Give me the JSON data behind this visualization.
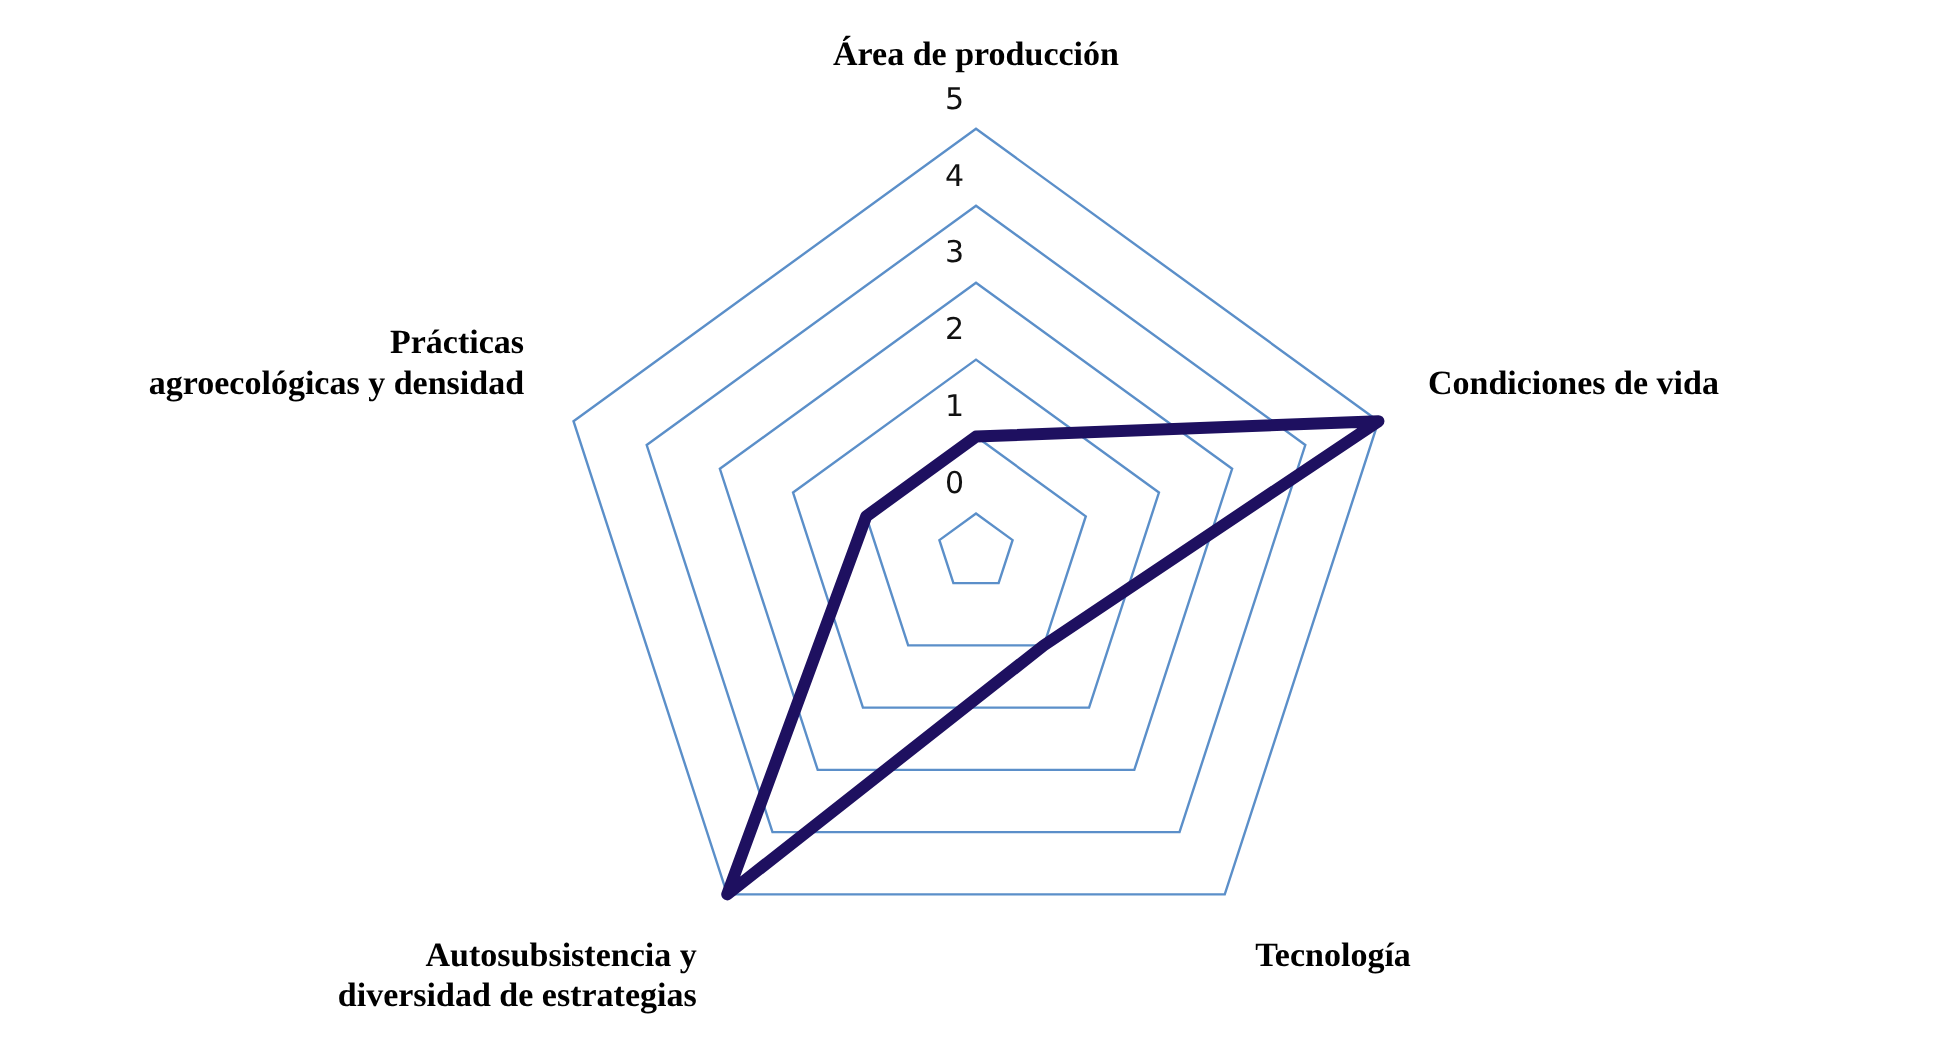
{
  "chart_data": {
    "type": "radar",
    "categories": [
      "Área de producción",
      "Condiciones de vida",
      "Tecnología",
      "Autosubsistencia y diversidad de estrategias",
      "Prácticas agroecológicas y densidad"
    ],
    "series": [
      {
        "color": "#1e1060",
        "values": [
          1,
          5,
          1,
          5,
          1
        ]
      }
    ],
    "ylim": [
      -0.5,
      5
    ],
    "yticks": [
      0,
      1,
      2,
      3,
      4,
      5
    ],
    "grid": true,
    "legend": false,
    "marker": "none"
  }
}
